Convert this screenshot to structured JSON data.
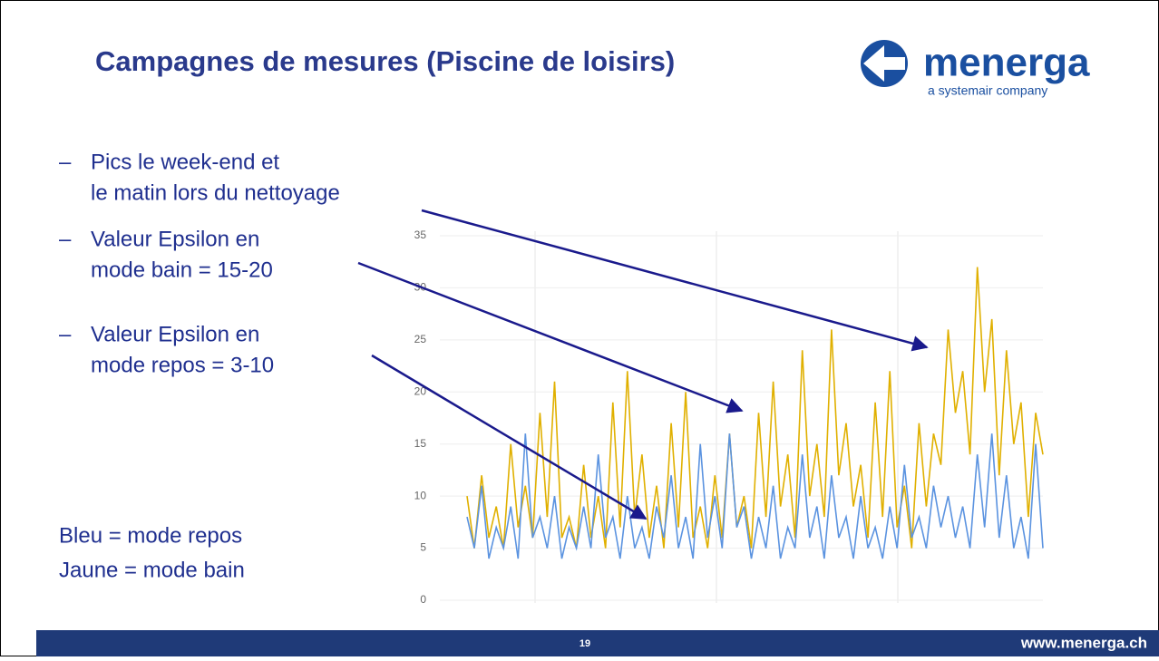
{
  "header": {
    "title": "Campagnes de mesures  (Piscine de loisirs)",
    "logo": {
      "name": "menerga",
      "tagline": "a systemair company"
    }
  },
  "bullets": [
    [
      "Pics le week-end et",
      "le matin lors du nettoyage"
    ],
    [
      "Valeur Epsilon en",
      "mode bain = 15-20"
    ],
    [
      "Valeur Epsilon en",
      "mode repos = 3-10"
    ]
  ],
  "notes": [
    "Bleu = mode repos",
    "Jaune = mode bain"
  ],
  "footer": {
    "page": "19",
    "website": "www.menerga.ch"
  },
  "chart_data": {
    "type": "line",
    "ylim": [
      0,
      35
    ],
    "yticks": [
      0,
      5,
      10,
      15,
      20,
      25,
      30,
      35
    ],
    "grid": true,
    "series": [
      {
        "color": "#e0b000",
        "values": [
          10,
          5,
          12,
          6,
          9,
          5,
          15,
          7,
          11,
          6,
          18,
          8,
          21,
          6,
          8,
          5,
          13,
          6,
          10,
          5,
          19,
          7,
          22,
          8,
          14,
          6,
          11,
          5,
          17,
          7,
          20,
          6,
          9,
          5,
          12,
          6,
          16,
          7,
          10,
          5,
          18,
          8,
          21,
          9,
          14,
          6,
          24,
          10,
          15,
          8,
          26,
          12,
          17,
          9,
          13,
          6,
          19,
          8,
          22,
          7,
          11,
          5,
          17,
          9,
          16,
          13,
          26,
          18,
          22,
          14,
          32,
          20,
          27,
          12,
          24,
          15,
          19,
          8,
          18,
          14
        ]
      },
      {
        "color": "#5b93e0",
        "values": [
          8,
          5,
          11,
          4,
          7,
          5,
          9,
          4,
          16,
          6,
          8,
          5,
          10,
          4,
          7,
          5,
          9,
          5,
          14,
          6,
          8,
          4,
          10,
          5,
          7,
          4,
          9,
          6,
          12,
          5,
          8,
          4,
          15,
          6,
          10,
          5,
          16,
          7,
          9,
          4,
          8,
          5,
          11,
          4,
          7,
          5,
          14,
          6,
          9,
          4,
          12,
          6,
          8,
          4,
          10,
          5,
          7,
          4,
          9,
          5,
          13,
          6,
          8,
          5,
          11,
          7,
          10,
          6,
          9,
          5,
          14,
          7,
          16,
          6,
          12,
          5,
          8,
          4,
          15,
          5
        ]
      }
    ]
  }
}
